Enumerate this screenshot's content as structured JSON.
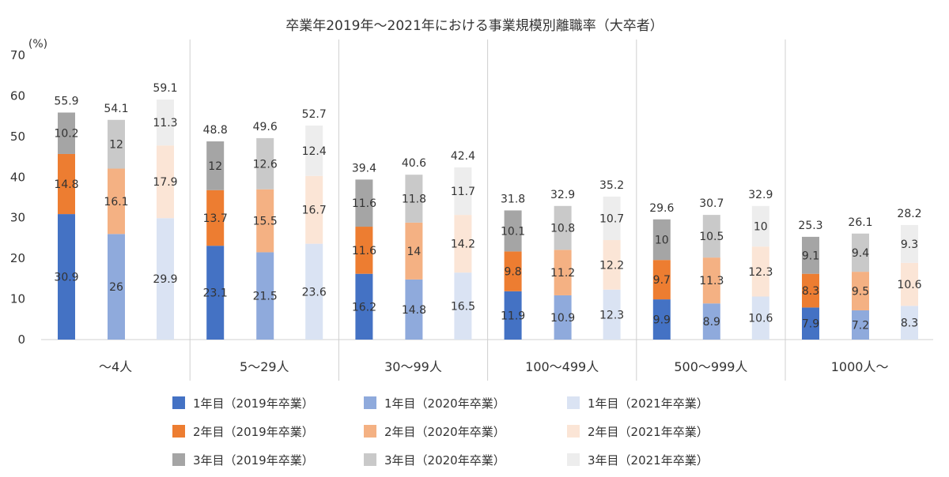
{
  "chart_data": {
    "type": "bar",
    "stacked": true,
    "title": "卒業年2019年～2021年における事業規模別離職率（大卒者）",
    "ylabel": "(%)",
    "ylim": [
      0,
      70
    ],
    "yticks": [
      0,
      10,
      20,
      30,
      40,
      50,
      60,
      70
    ],
    "categories": [
      "～4人",
      "5～29人",
      "30～99人",
      "100～499人",
      "500～999人",
      "1000人～"
    ],
    "groups": [
      {
        "name": "2019年卒業",
        "totals": [
          "55.9",
          "48.8",
          "39.4",
          "31.8",
          "29.6",
          "25.3"
        ],
        "series": [
          {
            "name": "1年目（2019年卒業）",
            "color": "#4472C4",
            "values": [
              30.9,
              23.1,
              16.2,
              11.9,
              9.9,
              7.9
            ]
          },
          {
            "name": "2年目（2019年卒業）",
            "color": "#ED7D31",
            "values": [
              14.8,
              13.7,
              11.6,
              9.8,
              9.7,
              8.3
            ]
          },
          {
            "name": "3年目（2019年卒業）",
            "color": "#A5A5A5",
            "values": [
              10.2,
              12.0,
              11.6,
              10.1,
              10.0,
              9.1
            ]
          }
        ]
      },
      {
        "name": "2020年卒業",
        "totals": [
          "54.1",
          "49.6",
          "40.6",
          "32.9",
          "30.7",
          "26.1"
        ],
        "series": [
          {
            "name": "1年目（2020年卒業）",
            "color": "#8FAADC",
            "values": [
              26.0,
              21.5,
              14.8,
              10.9,
              8.9,
              7.2
            ]
          },
          {
            "name": "2年目（2020年卒業）",
            "color": "#F4B183",
            "values": [
              16.1,
              15.5,
              14.0,
              11.2,
              11.3,
              9.5
            ]
          },
          {
            "name": "3年目（2020年卒業）",
            "color": "#C9C9C9",
            "values": [
              12.0,
              12.6,
              11.8,
              10.8,
              10.5,
              9.4
            ]
          }
        ]
      },
      {
        "name": "2021年卒業",
        "totals": [
          "59.1",
          "52.7",
          "42.4",
          "35.2",
          "32.9",
          "28.2"
        ],
        "series": [
          {
            "name": "1年目（2021年卒業）",
            "color": "#DAE3F3",
            "values": [
              29.9,
              23.6,
              16.5,
              12.3,
              10.6,
              8.3
            ]
          },
          {
            "name": "2年目（2021年卒業）",
            "color": "#FBE5D6",
            "values": [
              17.9,
              16.7,
              14.2,
              12.2,
              12.3,
              10.6
            ]
          },
          {
            "name": "3年目（2021年卒業）",
            "color": "#EDEDED",
            "values": [
              11.3,
              12.4,
              11.7,
              10.7,
              "10",
              9.3
            ]
          }
        ]
      }
    ],
    "legend_position": "bottom"
  }
}
